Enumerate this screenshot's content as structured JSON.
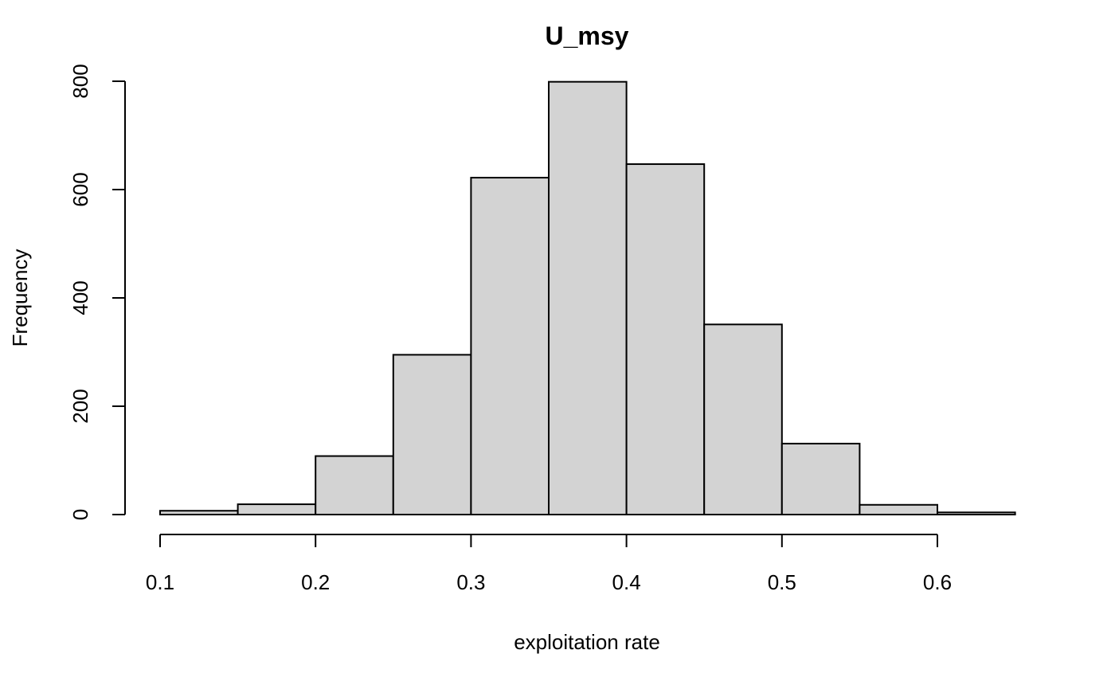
{
  "chart_data": {
    "type": "bar",
    "title": "U_msy",
    "xlabel": "exploitation rate",
    "ylabel": "Frequency",
    "bin_edges": [
      0.1,
      0.15,
      0.2,
      0.25,
      0.3,
      0.35,
      0.4,
      0.45,
      0.5,
      0.55,
      0.6,
      0.65
    ],
    "values": [
      7,
      19,
      108,
      295,
      622,
      799,
      647,
      351,
      131,
      18,
      4
    ],
    "xlim": [
      0.1,
      0.65
    ],
    "ylim": [
      0,
      800
    ],
    "x_ticks": [
      0.1,
      0.2,
      0.3,
      0.4,
      0.5,
      0.6
    ],
    "x_tick_labels": [
      "0.1",
      "0.2",
      "0.3",
      "0.4",
      "0.5",
      "0.6"
    ],
    "y_ticks": [
      0,
      200,
      400,
      600,
      800
    ],
    "y_tick_labels": [
      "0",
      "200",
      "400",
      "600",
      "800"
    ],
    "bar_fill": "#d3d3d3",
    "grid": false
  }
}
